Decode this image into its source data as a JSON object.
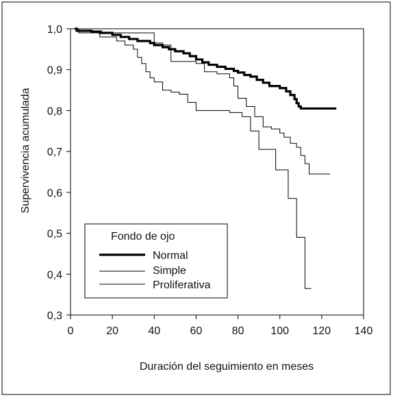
{
  "chart_data": {
    "type": "line",
    "step": true,
    "xlabel": "Duración del seguimiento en meses",
    "ylabel": "Supervivencia acumulada",
    "xlim": [
      0,
      140
    ],
    "ylim": [
      0.3,
      1.0
    ],
    "x_ticks": [
      "0",
      "20",
      "40",
      "60",
      "80",
      "100",
      "120",
      "140"
    ],
    "y_ticks": [
      "0,3",
      "0,4",
      "0,5",
      "0,6",
      "0,7",
      "0,8",
      "0,9",
      "1,0"
    ],
    "grid": false,
    "legend": {
      "title": "Fondo de ojo",
      "placement": "bottom-left"
    },
    "series": [
      {
        "name": "Normal",
        "style": "thick",
        "points": [
          [
            2,
            1.0
          ],
          [
            3,
            0.995
          ],
          [
            10,
            0.993
          ],
          [
            14,
            0.99
          ],
          [
            20,
            0.985
          ],
          [
            24,
            0.98
          ],
          [
            28,
            0.975
          ],
          [
            32,
            0.97
          ],
          [
            38,
            0.965
          ],
          [
            40,
            0.96
          ],
          [
            44,
            0.955
          ],
          [
            47,
            0.95
          ],
          [
            50,
            0.945
          ],
          [
            54,
            0.94
          ],
          [
            57,
            0.933
          ],
          [
            60,
            0.925
          ],
          [
            63,
            0.918
          ],
          [
            66,
            0.912
          ],
          [
            70,
            0.907
          ],
          [
            74,
            0.902
          ],
          [
            78,
            0.897
          ],
          [
            80,
            0.893
          ],
          [
            83,
            0.887
          ],
          [
            86,
            0.883
          ],
          [
            89,
            0.875
          ],
          [
            92,
            0.868
          ],
          [
            95,
            0.86
          ],
          [
            100,
            0.855
          ],
          [
            103,
            0.847
          ],
          [
            105,
            0.838
          ],
          [
            107,
            0.828
          ],
          [
            108,
            0.818
          ],
          [
            109,
            0.81
          ],
          [
            110,
            0.805
          ],
          [
            127,
            0.805
          ]
        ]
      },
      {
        "name": "Simple",
        "style": "thin",
        "points": [
          [
            2,
            1.0
          ],
          [
            4,
            0.995
          ],
          [
            15,
            0.99
          ],
          [
            40,
            0.965
          ],
          [
            44,
            0.96
          ],
          [
            48,
            0.92
          ],
          [
            60,
            0.915
          ],
          [
            64,
            0.895
          ],
          [
            70,
            0.89
          ],
          [
            76,
            0.88
          ],
          [
            78,
            0.86
          ],
          [
            80,
            0.83
          ],
          [
            84,
            0.81
          ],
          [
            88,
            0.785
          ],
          [
            92,
            0.76
          ],
          [
            96,
            0.755
          ],
          [
            100,
            0.745
          ],
          [
            102,
            0.735
          ],
          [
            105,
            0.72
          ],
          [
            108,
            0.71
          ],
          [
            110,
            0.69
          ],
          [
            112,
            0.67
          ],
          [
            114,
            0.645
          ],
          [
            124,
            0.645
          ]
        ]
      },
      {
        "name": "Proliferativa",
        "style": "thin",
        "points": [
          [
            2,
            1.0
          ],
          [
            4,
            0.99
          ],
          [
            14,
            0.98
          ],
          [
            22,
            0.97
          ],
          [
            26,
            0.96
          ],
          [
            30,
            0.95
          ],
          [
            32,
            0.93
          ],
          [
            34,
            0.915
          ],
          [
            36,
            0.895
          ],
          [
            38,
            0.88
          ],
          [
            40,
            0.87
          ],
          [
            44,
            0.85
          ],
          [
            48,
            0.845
          ],
          [
            52,
            0.84
          ],
          [
            56,
            0.82
          ],
          [
            60,
            0.8
          ],
          [
            76,
            0.795
          ],
          [
            82,
            0.785
          ],
          [
            86,
            0.75
          ],
          [
            90,
            0.705
          ],
          [
            98,
            0.655
          ],
          [
            104,
            0.585
          ],
          [
            108,
            0.49
          ],
          [
            112,
            0.365
          ],
          [
            115,
            0.365
          ]
        ]
      }
    ]
  }
}
